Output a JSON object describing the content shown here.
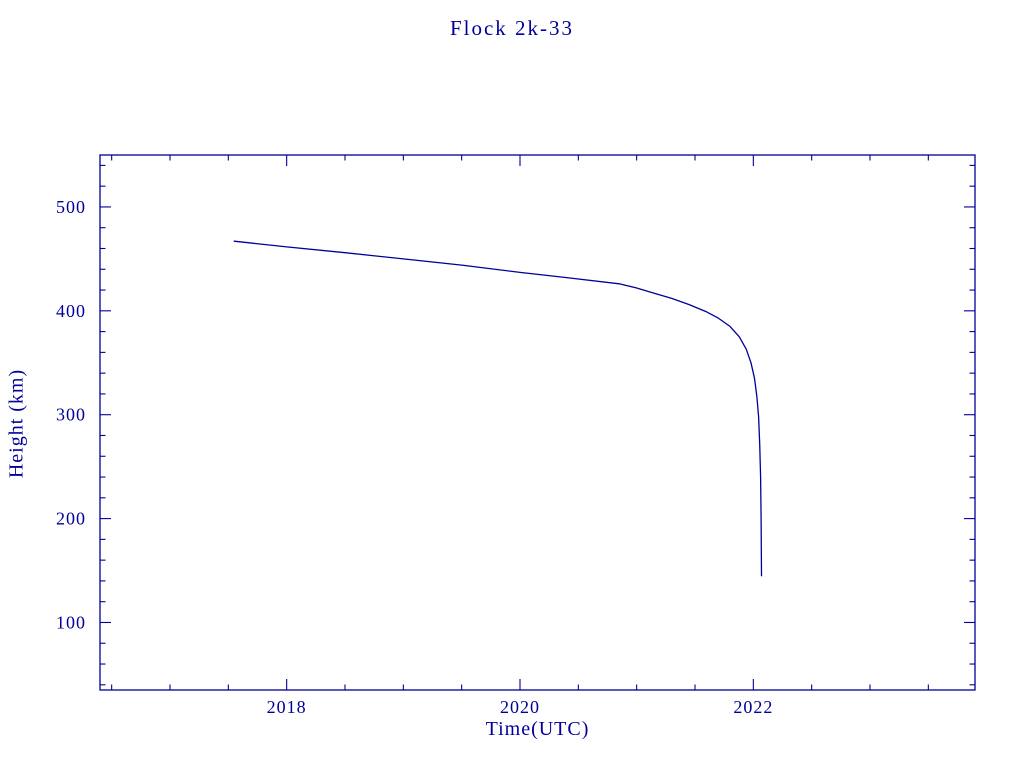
{
  "page": {
    "background": "#ffffff"
  },
  "chart_data": {
    "type": "line",
    "title": "Flock 2k-33",
    "xlabel": "Time(UTC)",
    "ylabel": "Height (km)",
    "color": "#000099",
    "xlim": [
      2016.4,
      2023.9
    ],
    "ylim": [
      35,
      550
    ],
    "x_major_ticks": [
      2018,
      2020,
      2022
    ],
    "x_minor_step": 0.5,
    "y_major_ticks": [
      100,
      200,
      300,
      400,
      500
    ],
    "y_minor_step": 20,
    "grid": false,
    "legend": "none",
    "series": [
      {
        "name": "Flock 2k-33 height",
        "points": [
          [
            2017.55,
            467
          ],
          [
            2018.0,
            461.5
          ],
          [
            2018.5,
            456
          ],
          [
            2019.0,
            450
          ],
          [
            2019.5,
            444
          ],
          [
            2020.0,
            437
          ],
          [
            2020.4,
            432
          ],
          [
            2020.85,
            426
          ],
          [
            2021.0,
            422
          ],
          [
            2021.15,
            417
          ],
          [
            2021.3,
            412
          ],
          [
            2021.45,
            406
          ],
          [
            2021.6,
            399
          ],
          [
            2021.7,
            393
          ],
          [
            2021.8,
            385
          ],
          [
            2021.88,
            375
          ],
          [
            2021.94,
            363
          ],
          [
            2021.98,
            350
          ],
          [
            2022.01,
            335
          ],
          [
            2022.03,
            318
          ],
          [
            2022.045,
            298
          ],
          [
            2022.055,
            272
          ],
          [
            2022.062,
            240
          ],
          [
            2022.067,
            200
          ],
          [
            2022.07,
            145
          ]
        ]
      }
    ]
  }
}
